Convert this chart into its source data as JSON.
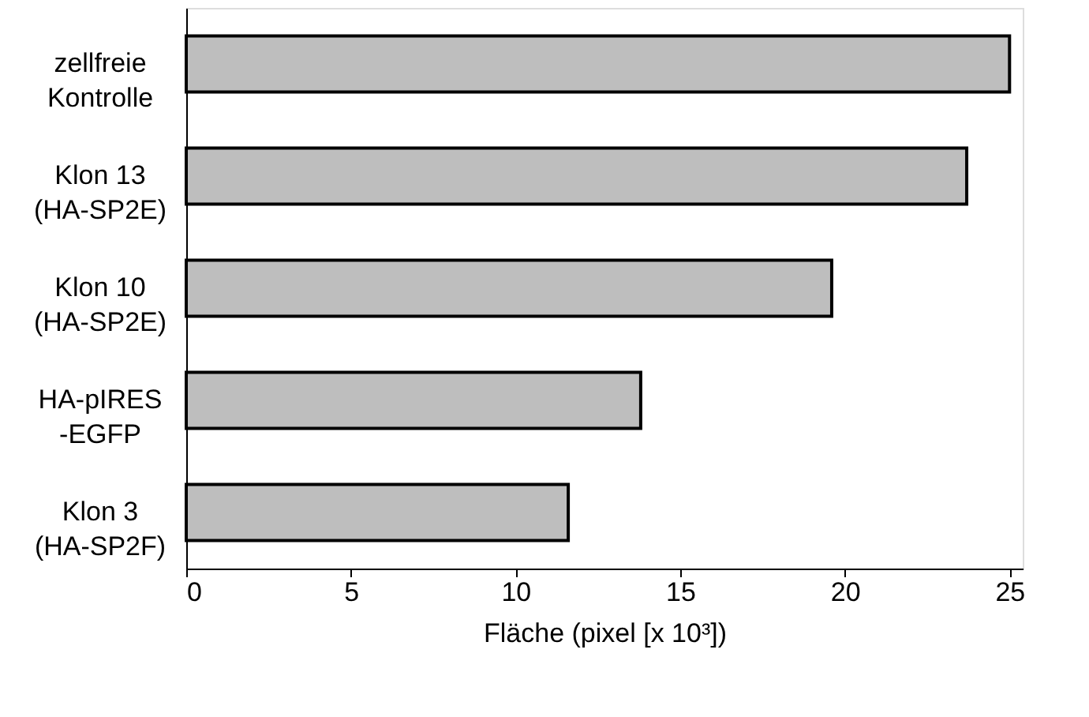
{
  "chart_data": {
    "type": "bar",
    "orientation": "horizontal",
    "xlabel": "Fläche (pixel [x 10³])",
    "categories": [
      "zellfreie\nKontrolle",
      "Klon 13\n(HA-SP2E)",
      "Klon 10\n(HA-SP2E)",
      "HA-pIRES\n-EGFP",
      "Klon 3\n(HA-SP2F)"
    ],
    "values": [
      25.0,
      23.7,
      19.6,
      13.8,
      11.6
    ],
    "color": "#bebebe",
    "xlim": [
      0,
      25.4
    ],
    "xticks": [
      0,
      5,
      10,
      15,
      20,
      25
    ],
    "grid": false
  }
}
